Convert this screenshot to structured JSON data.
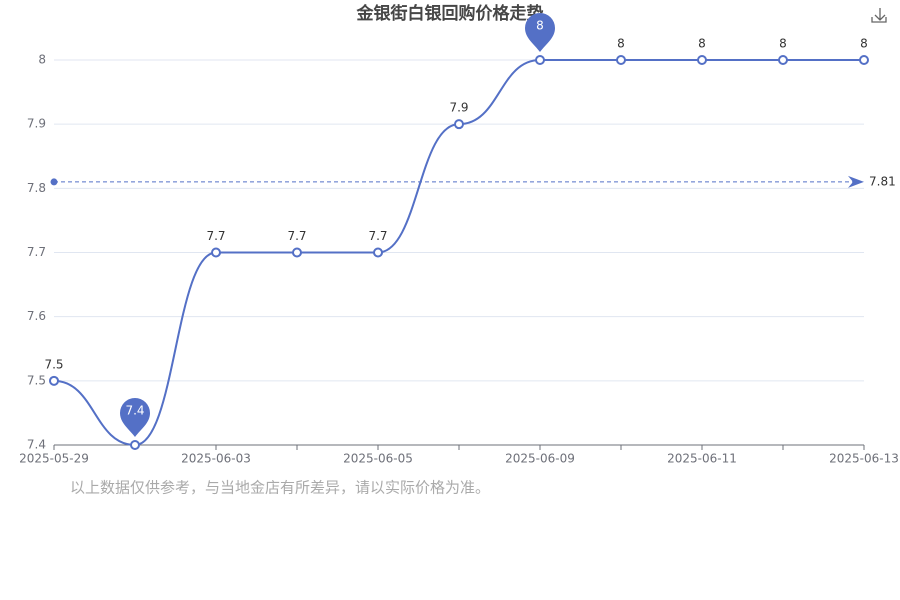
{
  "chart_data": {
    "type": "line",
    "title": "金银街白银回购价格走势",
    "categories": [
      "2025-05-29",
      null,
      "2025-06-03",
      null,
      "2025-06-05",
      null,
      "2025-06-09",
      null,
      "2025-06-11",
      null,
      "2025-06-13"
    ],
    "series": [
      {
        "name": "金银街白银回购价格",
        "color": "#5470c6",
        "values": [
          7.5,
          7.4,
          7.7,
          7.7,
          7.7,
          7.9,
          8,
          8,
          8,
          8,
          8
        ]
      }
    ],
    "ylim": [
      7.4,
      8
    ],
    "yticks": [
      7.4,
      7.5,
      7.6,
      7.7,
      7.8,
      7.9,
      8
    ],
    "grid": true,
    "average": 7.81,
    "note": "以上数据仅供参考，与当地金店有所差异，请以实际价格为准。"
  }
}
